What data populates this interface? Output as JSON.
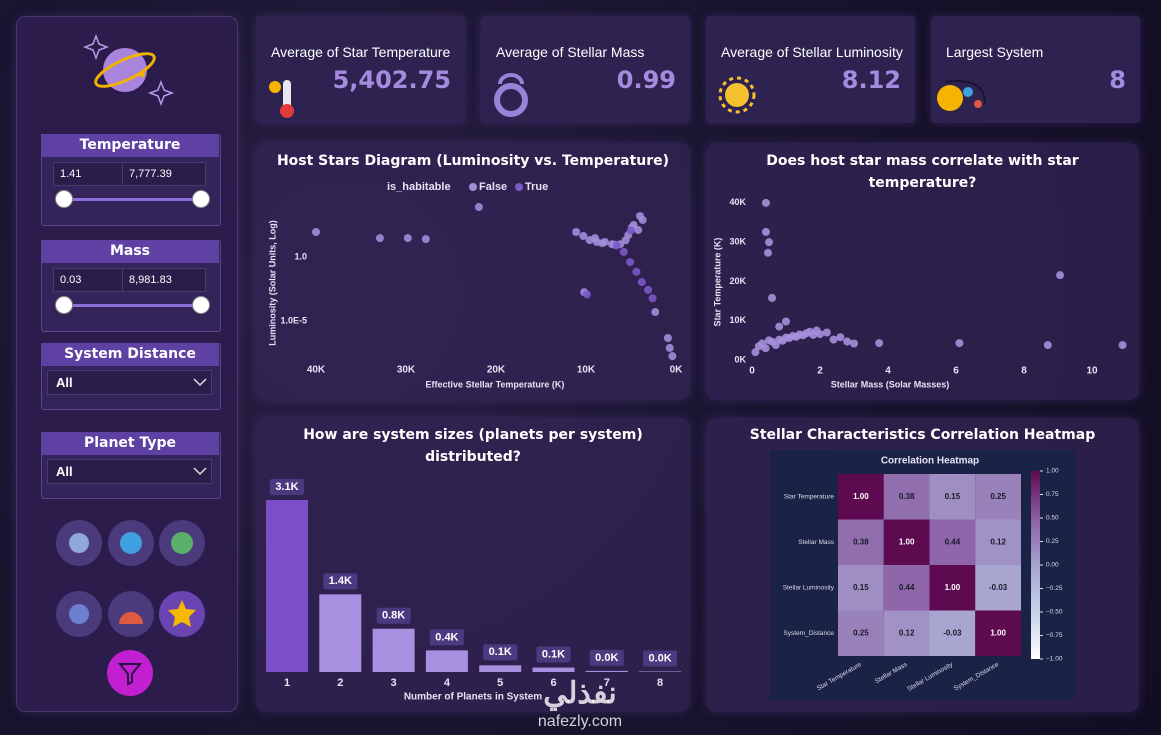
{
  "sidebar": {
    "filters": [
      {
        "title": "Temperature",
        "min": "1.41",
        "max": "7,777.39"
      },
      {
        "title": "Mass",
        "min": "0.03",
        "max": "8,981.83"
      },
      {
        "title": "System Distance",
        "selected": "All"
      },
      {
        "title": "Planet Type",
        "selected": "All"
      }
    ]
  },
  "kpis": [
    {
      "title": "Average of Star Temperature",
      "value": "5,402.75"
    },
    {
      "title": "Average of Stellar Mass",
      "value": "0.99"
    },
    {
      "title": "Average of Stellar Luminosity",
      "value": "8.12"
    },
    {
      "title": "Largest System",
      "value": "8"
    }
  ],
  "chart_data": [
    {
      "type": "scatter",
      "title": "Host Stars Diagram (Luminosity vs. Temperature)",
      "x_label": "Effective Stellar Temperature (K)",
      "y_label": "Luminosity (Solar Units, Log)",
      "legend_title": "is_habitable",
      "y_log": true,
      "xlim": [
        45000,
        0
      ],
      "ylim": [
        1e-08,
        100000
      ],
      "xticks": [
        {
          "value": 40000,
          "label": "40K"
        },
        {
          "value": 30000,
          "label": "30K"
        },
        {
          "value": 20000,
          "label": "20K"
        },
        {
          "value": 10000,
          "label": "10K"
        },
        {
          "value": 0,
          "label": "0K"
        }
      ],
      "yticks": [
        {
          "value": 1,
          "label": "1.0"
        },
        {
          "value": 1e-05,
          "label": "1.0E-5"
        }
      ],
      "series": [
        {
          "name": "False",
          "color": "#a18dd9",
          "x": [
            40000,
            32900,
            29800,
            27800,
            21900,
            11100,
            10300,
            9600,
            9000,
            8800,
            8200,
            7900,
            7100,
            6800,
            6200,
            5600,
            5300,
            4900,
            4700,
            4000,
            3700,
            4200,
            10200,
            2300,
            900,
            700,
            400
          ],
          "values": [
            90,
            30,
            30,
            25,
            8000,
            90,
            44,
            21,
            30,
            15,
            12,
            15,
            10,
            9,
            10,
            20,
            52,
            200,
            315,
            1600,
            780,
            130,
            0.0018,
            5e-05,
            4.7e-07,
            7.9e-08,
            1.8e-08
          ]
        },
        {
          "name": "True",
          "color": "#7b58c9",
          "x": [
            5800,
            5100,
            4400,
            3800,
            3100,
            2600,
            6600,
            5000,
            9900
          ],
          "values": [
            2.5,
            0.4,
            0.07,
            0.011,
            0.0027,
            0.0006,
            8,
            120,
            0.0012
          ]
        }
      ]
    },
    {
      "type": "scatter",
      "title": "Does host star mass correlate with star temperature?",
      "x_label": "Stellar Mass (Solar Masses)",
      "y_label": "Star Temperature (K)",
      "xlim": [
        0,
        11
      ],
      "ylim": [
        0,
        42000
      ],
      "xticks": [
        0,
        2,
        4,
        6,
        8,
        10
      ],
      "yticks": [
        {
          "value": 0,
          "label": "0K"
        },
        {
          "value": 10000,
          "label": "10K"
        },
        {
          "value": 20000,
          "label": "20K"
        },
        {
          "value": 30000,
          "label": "30K"
        },
        {
          "value": 40000,
          "label": "40K"
        }
      ],
      "series": [
        {
          "color": "#a690dc",
          "x": [
            0.41,
            0.41,
            0.5,
            0.47,
            0.59,
            9.06,
            3.74,
            6.1,
            8.7,
            10.9,
            0.1,
            0.2,
            0.3,
            0.4,
            0.5,
            0.6,
            0.7,
            0.8,
            0.9,
            1.0,
            1.1,
            1.2,
            1.3,
            1.4,
            1.5,
            1.6,
            1.7,
            1.8,
            1.9,
            2.0,
            2.2,
            2.4,
            2.6,
            2.8,
            0.8,
            1.0,
            3.0
          ],
          "values": [
            40000,
            32600,
            30000,
            27300,
            15800,
            21600,
            4300,
            4300,
            3800,
            3800,
            2000,
            3500,
            4200,
            3000,
            5000,
            4600,
            3800,
            5200,
            4900,
            5700,
            5600,
            6100,
            5900,
            6500,
            6300,
            6800,
            7200,
            6400,
            7500,
            6600,
            7000,
            5200,
            5800,
            4700,
            8500,
            9800,
            4200
          ]
        }
      ]
    },
    {
      "type": "bar",
      "title": "How are system sizes (planets per system) distributed?",
      "x_label": "Number of Planets in System",
      "categories": [
        "1",
        "2",
        "3",
        "4",
        "5",
        "6",
        "7",
        "8"
      ],
      "values": [
        3100,
        1400,
        780,
        390,
        120,
        80,
        20,
        10
      ],
      "value_labels": [
        "3.1K",
        "1.4K",
        "0.8K",
        "0.4K",
        "0.1K",
        "0.1K",
        "0.0K",
        "0.0K"
      ],
      "colors": [
        "#7b4fc8",
        "#a98fe0",
        "#a98fe0",
        "#a98fe0",
        "#a98fe0",
        "#a98fe0",
        "#a98fe0",
        "#a98fe0"
      ]
    },
    {
      "type": "heatmap",
      "title": "Stellar Characteristics Correlation Heatmap",
      "subtitle": "Correlation Heatmap",
      "categories": [
        "Star Temperature",
        "Stellar Mass",
        "Stellar Luminosity",
        "System_Distance"
      ],
      "values": [
        [
          1,
          0.38,
          0.15,
          0.25
        ],
        [
          0.38,
          1,
          0.44,
          0.12
        ],
        [
          0.15,
          0.44,
          1,
          -0.03
        ],
        [
          0.25,
          0.12,
          -0.03,
          1
        ]
      ],
      "value_labels": [
        [
          "1.00",
          "0.38",
          "0.15",
          "0.25"
        ],
        [
          "0.38",
          "1.00",
          "0.44",
          "0.12"
        ],
        [
          "0.15",
          "0.44",
          "1.00",
          "-0.03"
        ],
        [
          "0.25",
          "0.12",
          "-0.03",
          "1.00"
        ]
      ],
      "zlim": [
        -1,
        1
      ],
      "colors": [
        "#ffffff",
        "#c6d2ea",
        "#a6a3cf",
        "#8b5ea4",
        "#5e0a50"
      ],
      "zticks": [
        {
          "value": 1,
          "label": "1.00"
        },
        0.75,
        {
          "value": 0.5,
          "label": "0.50"
        },
        0.25,
        {
          "value": 0,
          "label": "0.00"
        },
        {
          "value": -0.25,
          "label": "−0.25"
        },
        {
          "value": -0.5,
          "label": "−0.50"
        },
        {
          "value": -0.75,
          "label": "−0.75"
        },
        {
          "value": -1,
          "label": "−1.00"
        }
      ]
    }
  ],
  "watermark": {
    "arabic": "نفذلي",
    "url": "nafezly.com"
  }
}
